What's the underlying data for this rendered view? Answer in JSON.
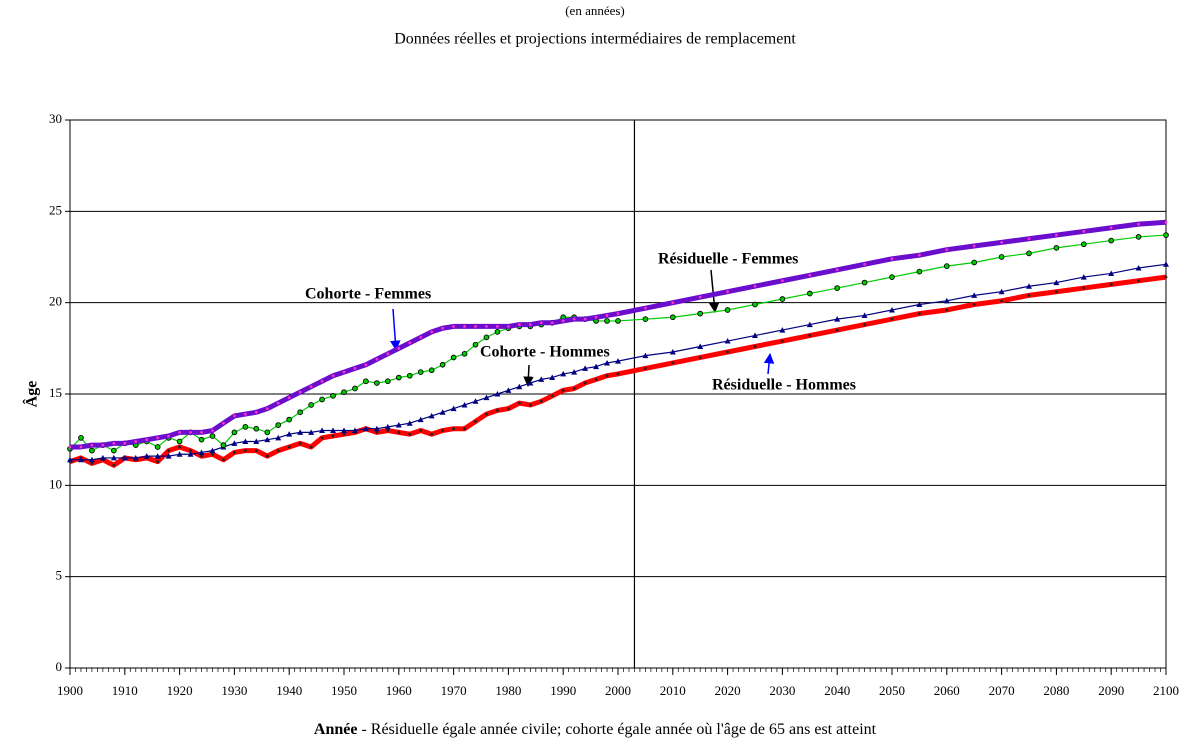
{
  "chart_data": {
    "type": "line",
    "title": "(en années)",
    "subtitle": "Données réelles et projections intermédiaires de remplacement",
    "ylabel": "Âge",
    "xlabel": {
      "bold": "Année",
      "rest": " - Résiduelle égale année civile; cohorte égale année où l'âge de 65 ans est atteint"
    },
    "xlim": [
      1900,
      2100
    ],
    "xticks": [
      1900,
      1910,
      1920,
      1930,
      1940,
      1950,
      1960,
      1970,
      1980,
      1990,
      2000,
      2010,
      2020,
      2030,
      2040,
      2050,
      2060,
      2070,
      2080,
      2090,
      2100
    ],
    "ylim": [
      0,
      30
    ],
    "yticks": [
      0,
      5,
      10,
      15,
      20,
      25,
      30
    ],
    "grid": true,
    "vline": 2003,
    "x": [
      1900,
      1902,
      1904,
      1906,
      1908,
      1910,
      1912,
      1914,
      1916,
      1918,
      1920,
      1922,
      1924,
      1926,
      1928,
      1930,
      1932,
      1934,
      1936,
      1938,
      1940,
      1942,
      1944,
      1946,
      1948,
      1950,
      1952,
      1954,
      1956,
      1958,
      1960,
      1962,
      1964,
      1966,
      1968,
      1970,
      1972,
      1974,
      1976,
      1978,
      1980,
      1982,
      1984,
      1986,
      1988,
      1990,
      1992,
      1994,
      1996,
      1998,
      2000,
      2005,
      2010,
      2015,
      2020,
      2025,
      2030,
      2035,
      2040,
      2045,
      2050,
      2055,
      2060,
      2065,
      2070,
      2075,
      2080,
      2085,
      2090,
      2095,
      2100
    ],
    "series": [
      {
        "name": "Cohorte - Femmes",
        "color": "#6a0dcc",
        "marker_color": "#ff33cc",
        "marker": "dot",
        "values": [
          12.1,
          12.1,
          12.2,
          12.2,
          12.3,
          12.3,
          12.4,
          12.5,
          12.6,
          12.7,
          12.9,
          12.9,
          12.9,
          13.0,
          13.4,
          13.8,
          13.9,
          14.0,
          14.2,
          14.5,
          14.8,
          15.1,
          15.4,
          15.7,
          16.0,
          16.2,
          16.4,
          16.6,
          16.9,
          17.2,
          17.5,
          17.8,
          18.1,
          18.4,
          18.6,
          18.7,
          18.7,
          18.7,
          18.7,
          18.7,
          18.7,
          18.8,
          18.8,
          18.9,
          18.9,
          19.0,
          19.1,
          19.1,
          19.2,
          19.3,
          19.4,
          19.7,
          20.0,
          20.3,
          20.6,
          20.9,
          21.2,
          21.5,
          21.8,
          22.1,
          22.4,
          22.6,
          22.9,
          23.1,
          23.3,
          23.5,
          23.7,
          23.9,
          24.1,
          24.3,
          24.4
        ]
      },
      {
        "name": "Résiduelle - Femmes",
        "color": "#00cc00",
        "marker_color": "#00cc00",
        "marker": "circle",
        "values": [
          12.0,
          12.6,
          11.9,
          12.2,
          11.9,
          12.3,
          12.2,
          12.4,
          12.1,
          12.6,
          12.4,
          12.9,
          12.5,
          12.7,
          12.2,
          12.9,
          13.2,
          13.1,
          12.9,
          13.3,
          13.6,
          14.0,
          14.4,
          14.7,
          14.9,
          15.1,
          15.3,
          15.7,
          15.6,
          15.7,
          15.9,
          16.0,
          16.2,
          16.3,
          16.6,
          17.0,
          17.2,
          17.7,
          18.1,
          18.4,
          18.6,
          18.7,
          18.7,
          18.8,
          18.9,
          19.2,
          19.2,
          19.1,
          19.0,
          19.0,
          19.0,
          19.1,
          19.2,
          19.4,
          19.6,
          19.9,
          20.2,
          20.5,
          20.8,
          21.1,
          21.4,
          21.7,
          22.0,
          22.2,
          22.5,
          22.7,
          23.0,
          23.2,
          23.4,
          23.6,
          23.7
        ]
      },
      {
        "name": "Cohorte - Hommes",
        "color": "#000080",
        "marker_color": "#000080",
        "marker": "triangle",
        "values": [
          11.4,
          11.4,
          11.4,
          11.5,
          11.5,
          11.5,
          11.5,
          11.6,
          11.6,
          11.6,
          11.7,
          11.7,
          11.8,
          11.9,
          12.1,
          12.3,
          12.4,
          12.4,
          12.5,
          12.6,
          12.8,
          12.9,
          12.9,
          13.0,
          13.0,
          13.0,
          13.0,
          13.1,
          13.1,
          13.2,
          13.3,
          13.4,
          13.6,
          13.8,
          14.0,
          14.2,
          14.4,
          14.6,
          14.8,
          15.0,
          15.2,
          15.4,
          15.6,
          15.8,
          15.9,
          16.1,
          16.2,
          16.4,
          16.5,
          16.7,
          16.8,
          17.1,
          17.3,
          17.6,
          17.9,
          18.2,
          18.5,
          18.8,
          19.1,
          19.3,
          19.6,
          19.9,
          20.1,
          20.4,
          20.6,
          20.9,
          21.1,
          21.4,
          21.6,
          21.9,
          22.1
        ]
      },
      {
        "name": "Résiduelle - Hommes",
        "color": "#ff0000",
        "marker_color": "#222222",
        "marker": "dot",
        "values": [
          11.3,
          11.5,
          11.2,
          11.4,
          11.1,
          11.5,
          11.4,
          11.5,
          11.3,
          11.9,
          12.1,
          11.9,
          11.6,
          11.7,
          11.4,
          11.8,
          11.9,
          11.9,
          11.6,
          11.9,
          12.1,
          12.3,
          12.1,
          12.6,
          12.7,
          12.8,
          12.9,
          13.1,
          12.9,
          13.0,
          12.9,
          12.8,
          13.0,
          12.8,
          13.0,
          13.1,
          13.1,
          13.5,
          13.9,
          14.1,
          14.2,
          14.5,
          14.4,
          14.6,
          14.9,
          15.2,
          15.3,
          15.6,
          15.8,
          16.0,
          16.1,
          16.4,
          16.7,
          17.0,
          17.3,
          17.6,
          17.9,
          18.2,
          18.5,
          18.8,
          19.1,
          19.4,
          19.6,
          19.9,
          20.1,
          20.4,
          20.6,
          20.8,
          21.0,
          21.2,
          21.4
        ]
      }
    ]
  }
}
